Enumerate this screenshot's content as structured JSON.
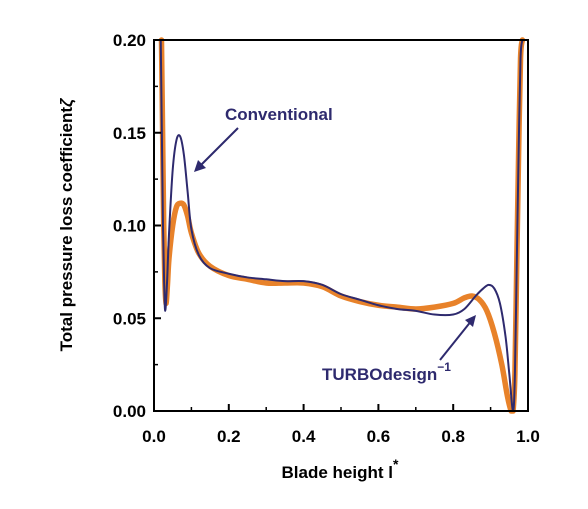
{
  "chart_data": {
    "type": "line",
    "xlabel": "Blade height l",
    "xlabel_sup": "*",
    "ylabel": "Total pressure loss coefficient",
    "ylabel_symbol": "ζ",
    "xlim": [
      0.0,
      1.0
    ],
    "ylim": [
      0.0,
      0.2
    ],
    "xticks": [
      "0.0",
      "0.2",
      "0.4",
      "0.6",
      "0.8",
      "1.0"
    ],
    "yticks": [
      "0.00",
      "0.05",
      "0.10",
      "0.15",
      "0.20"
    ],
    "grid": false,
    "series": [
      {
        "name": "Conventional",
        "color": "#2e2a6e",
        "x": [
          0.018,
          0.021,
          0.024,
          0.027,
          0.03,
          0.035,
          0.04,
          0.05,
          0.06,
          0.07,
          0.08,
          0.09,
          0.1,
          0.12,
          0.15,
          0.2,
          0.25,
          0.3,
          0.35,
          0.4,
          0.45,
          0.5,
          0.55,
          0.6,
          0.65,
          0.7,
          0.75,
          0.8,
          0.83,
          0.86,
          0.88,
          0.895,
          0.91,
          0.925,
          0.94,
          0.95,
          0.96,
          0.965,
          0.97,
          0.975,
          0.98,
          0.985
        ],
        "y": [
          0.2,
          0.15,
          0.1,
          0.07,
          0.054,
          0.07,
          0.095,
          0.13,
          0.146,
          0.148,
          0.138,
          0.118,
          0.098,
          0.084,
          0.077,
          0.074,
          0.072,
          0.071,
          0.07,
          0.07,
          0.068,
          0.063,
          0.06,
          0.057,
          0.055,
          0.054,
          0.052,
          0.052,
          0.055,
          0.062,
          0.066,
          0.068,
          0.066,
          0.058,
          0.04,
          0.02,
          0.0,
          0.02,
          0.08,
          0.14,
          0.19,
          0.2
        ]
      },
      {
        "name": "TURBOdesign",
        "name_sup": "−1",
        "color": "#e8822a",
        "x": [
          0.02,
          0.023,
          0.026,
          0.029,
          0.032,
          0.036,
          0.04,
          0.05,
          0.06,
          0.07,
          0.08,
          0.09,
          0.1,
          0.12,
          0.15,
          0.2,
          0.25,
          0.3,
          0.35,
          0.4,
          0.45,
          0.5,
          0.55,
          0.6,
          0.65,
          0.7,
          0.75,
          0.8,
          0.83,
          0.85,
          0.87,
          0.89,
          0.91,
          0.93,
          0.945,
          0.955,
          0.96,
          0.965,
          0.97,
          0.975,
          0.98,
          0.985
        ],
        "y": [
          0.2,
          0.15,
          0.1,
          0.07,
          0.058,
          0.068,
          0.082,
          0.1,
          0.11,
          0.112,
          0.111,
          0.105,
          0.096,
          0.085,
          0.078,
          0.073,
          0.071,
          0.069,
          0.069,
          0.069,
          0.067,
          0.062,
          0.059,
          0.057,
          0.056,
          0.055,
          0.056,
          0.058,
          0.061,
          0.062,
          0.06,
          0.054,
          0.042,
          0.025,
          0.008,
          0.0,
          0.0,
          0.02,
          0.08,
          0.14,
          0.19,
          0.2
        ]
      }
    ],
    "annotations": [
      {
        "text": "Conventional",
        "color": "#2e2a6e",
        "target_series": "Conventional"
      },
      {
        "text": "TURBOdesign",
        "sup": "−1",
        "color": "#2e2a6e",
        "target_series": "TURBOdesign"
      }
    ]
  }
}
